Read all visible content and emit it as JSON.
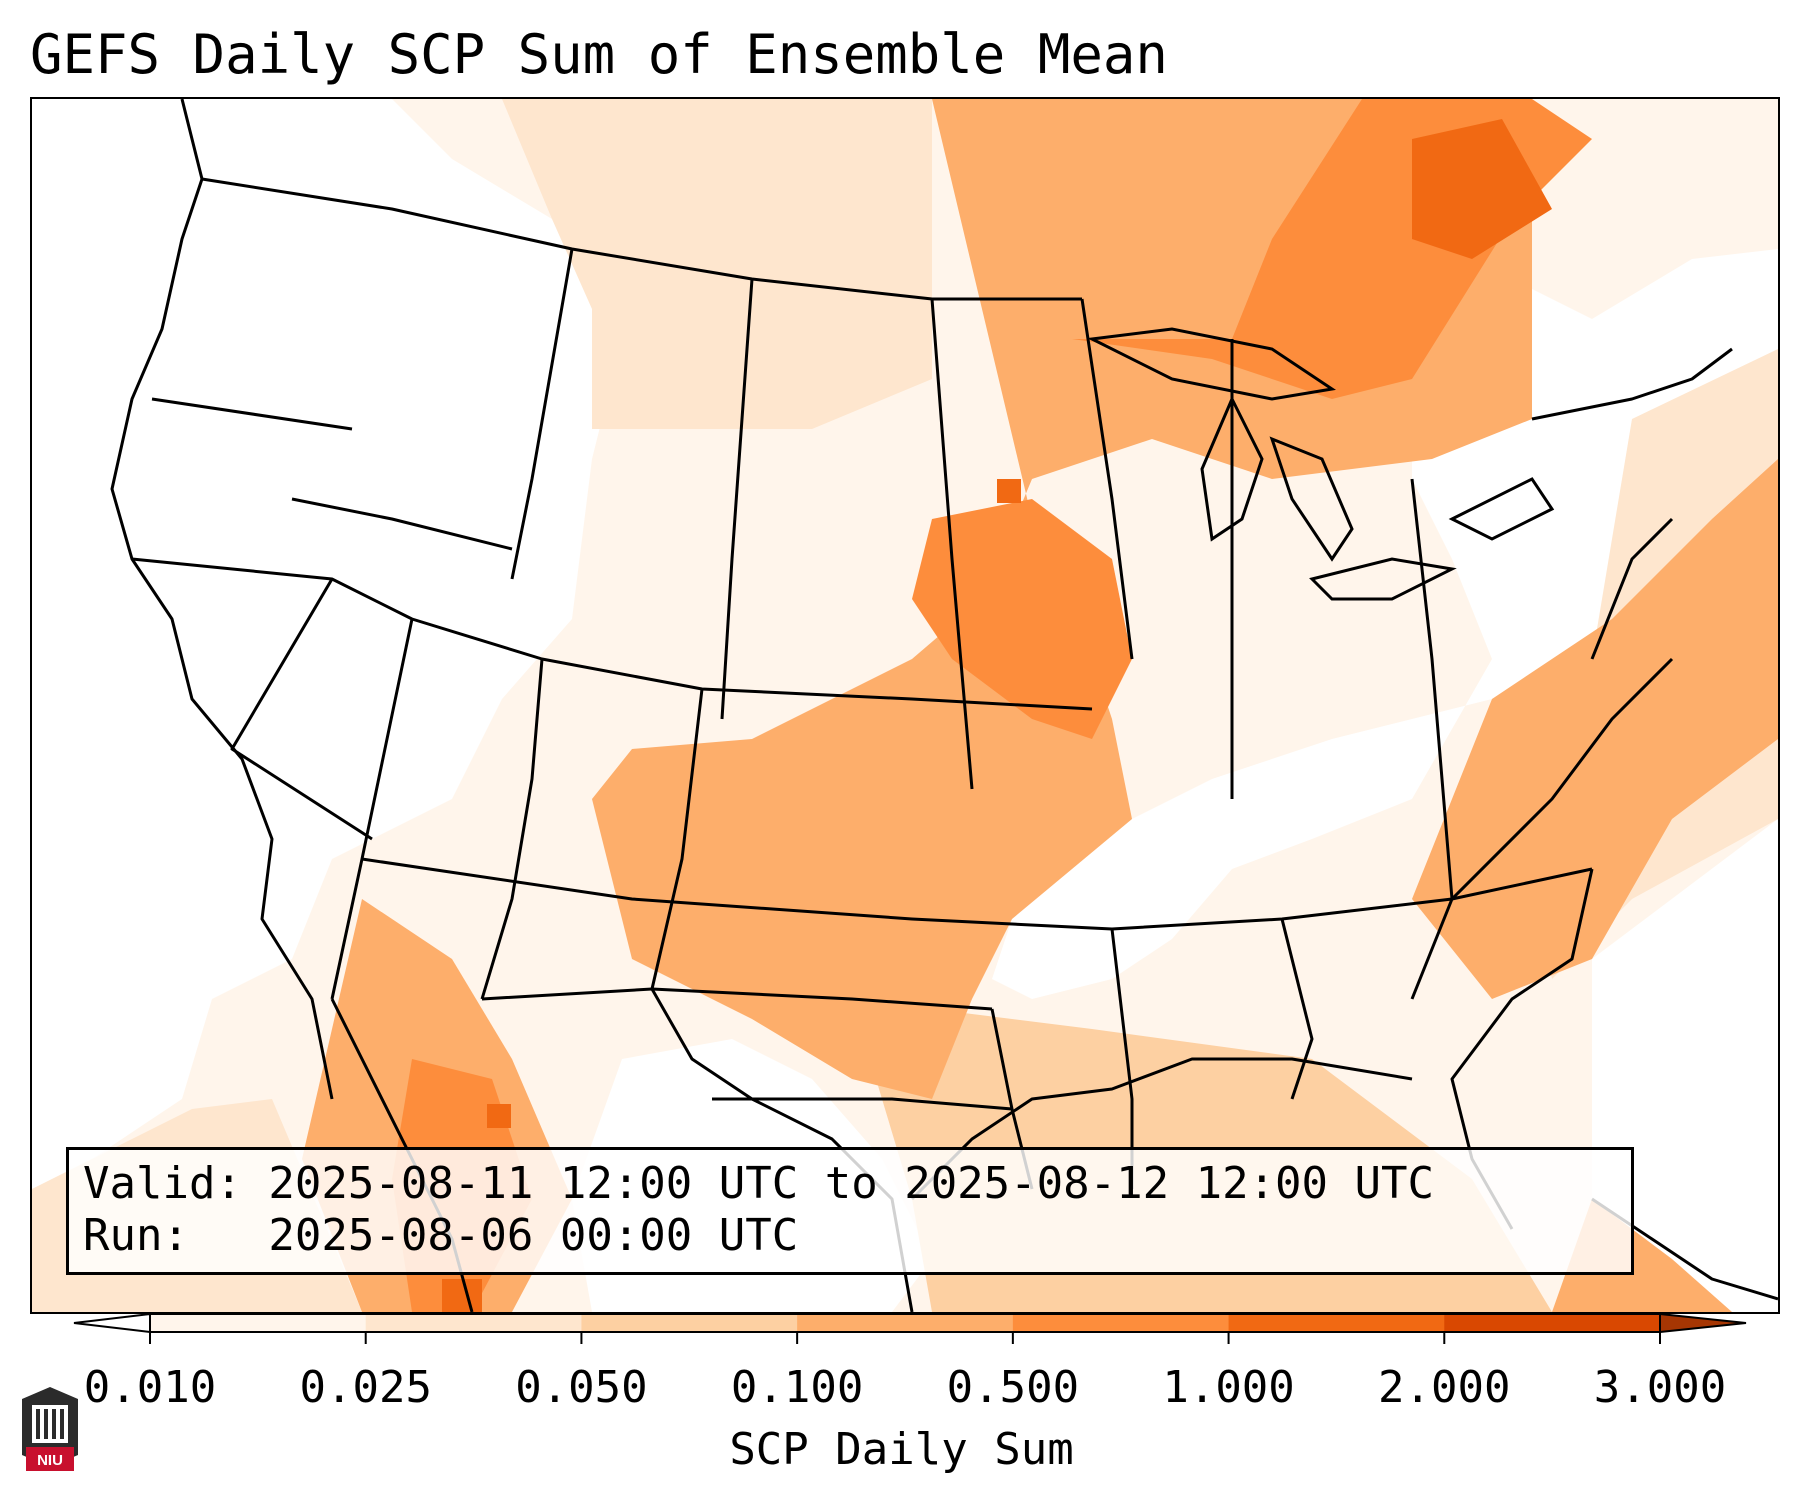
{
  "title": "GEFS Daily SCP Sum of Ensemble Mean",
  "info": {
    "valid_line": "Valid: 2025-08-11 12:00 UTC to 2025-08-12 12:00 UTC",
    "run_line": "Run:   2025-08-06 00:00 UTC"
  },
  "colorbar": {
    "label": "SCP Daily Sum",
    "ticks": [
      "0.010",
      "0.025",
      "0.050",
      "0.100",
      "0.500",
      "1.000",
      "2.000",
      "3.000"
    ],
    "colors": [
      "#fff5eb",
      "#fee6ce",
      "#fdd0a2",
      "#fdae6b",
      "#fd8d3c",
      "#f16913",
      "#d94801"
    ],
    "over_color": "#a63603",
    "under_color": "#ffffff",
    "extend": "both"
  },
  "logo": {
    "text": "NIU",
    "color": "#c8102e"
  },
  "map": {
    "projection": "lambert-conformal-conus",
    "region_fill_levels": {
      "west_coast": "none",
      "great_basin": "none",
      "southeast": "none",
      "northeast": "none",
      "northern_plains": "fff5eb",
      "central_plains": "fdae6b",
      "iowa_illinois": "fd8d3c",
      "ontario": "fd8d3c",
      "texas_new_mexico": "fdae6b",
      "atlantic": "fdae6b",
      "gulf": "fdd0a2"
    }
  }
}
